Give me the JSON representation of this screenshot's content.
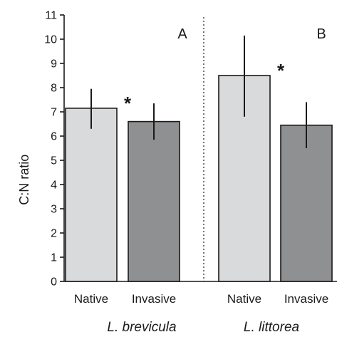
{
  "chart_data": {
    "type": "bar",
    "ylabel": "C:N ratio",
    "ylim": [
      0,
      11
    ],
    "yticks": [
      0,
      1,
      2,
      3,
      4,
      5,
      6,
      7,
      8,
      9,
      10,
      11
    ],
    "colors": {
      "native": "#d9dadb",
      "invasive": "#8f9092",
      "outline": "#1a1a1a"
    },
    "panels": [
      {
        "label": "A",
        "group": "L. brevicula",
        "significance": "*",
        "bars": [
          {
            "category": "Native",
            "value": 7.15,
            "err_low": 6.3,
            "err_high": 7.95,
            "color_key": "native"
          },
          {
            "category": "Invasive",
            "value": 6.6,
            "err_low": 5.85,
            "err_high": 7.35,
            "color_key": "invasive"
          }
        ]
      },
      {
        "label": "B",
        "group": "L. littorea",
        "significance": "*",
        "bars": [
          {
            "category": "Native",
            "value": 8.5,
            "err_low": 6.8,
            "err_high": 10.15,
            "color_key": "native"
          },
          {
            "category": "Invasive",
            "value": 6.45,
            "err_low": 5.5,
            "err_high": 7.4,
            "color_key": "invasive"
          }
        ]
      }
    ]
  }
}
